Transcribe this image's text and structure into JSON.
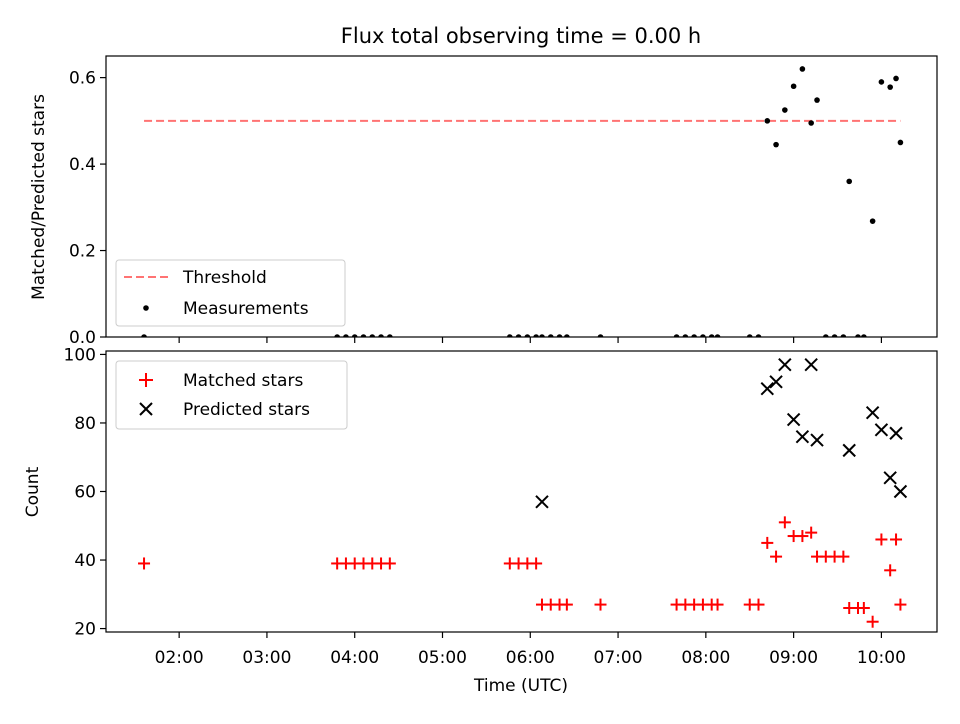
{
  "title": "Flux total observing time = 0.00 h",
  "colors": {
    "threshold": "#ff7373",
    "measurements": "#000000",
    "matched": "#ff0000",
    "predicted": "#000000",
    "axes": "#000000"
  },
  "chart_data": [
    {
      "type": "scatter",
      "panel": "top",
      "ylabel": "Matched/Predicted stars",
      "xlabel": "",
      "xlim": [
        "01:10",
        "10:38"
      ],
      "ylim": [
        0,
        0.65
      ],
      "yticks": [
        0.0,
        0.2,
        0.4,
        0.6
      ],
      "ytick_labels": [
        "0.0",
        "0.2",
        "0.4",
        "0.6"
      ],
      "legend": {
        "placement": "lower-left",
        "entries": [
          "Threshold",
          "Measurements"
        ]
      },
      "threshold": {
        "name": "Threshold",
        "value": 0.5,
        "x_range": [
          "01:36",
          "10:13"
        ]
      },
      "series": [
        {
          "name": "Measurements",
          "x": [
            "01:36",
            "03:48",
            "03:54",
            "04:00",
            "04:06",
            "04:12",
            "04:18",
            "04:24",
            "05:46",
            "05:52",
            "05:58",
            "06:04",
            "06:08",
            "06:14",
            "06:20",
            "06:25",
            "06:48",
            "07:40",
            "07:46",
            "07:52",
            "07:58",
            "08:04",
            "08:08",
            "08:30",
            "08:36",
            "08:42",
            "08:48",
            "08:54",
            "09:00",
            "09:06",
            "09:12",
            "09:16",
            "09:22",
            "09:28",
            "09:34",
            "09:38",
            "09:44",
            "09:48",
            "09:54",
            "10:00",
            "10:06",
            "10:10",
            "10:13"
          ],
          "y": [
            0,
            0,
            0,
            0,
            0,
            0,
            0,
            0,
            0,
            0,
            0,
            0,
            0,
            0,
            0,
            0,
            0,
            0,
            0,
            0,
            0,
            0,
            0,
            0,
            0,
            0.5,
            0.445,
            0.525,
            0.58,
            0.62,
            0.495,
            0.548,
            0,
            0,
            0,
            0.36,
            0,
            0,
            0.268,
            0.59,
            0.578,
            0.598,
            0.45
          ]
        }
      ]
    },
    {
      "type": "scatter",
      "panel": "bottom",
      "ylabel": "Count",
      "xlabel": "Time (UTC)",
      "xlim": [
        "01:10",
        "10:38"
      ],
      "ylim": [
        19,
        101
      ],
      "yticks": [
        20,
        40,
        60,
        80,
        100
      ],
      "ytick_labels": [
        "20",
        "40",
        "60",
        "80",
        "100"
      ],
      "xticks": [
        "02:00",
        "03:00",
        "04:00",
        "05:00",
        "06:00",
        "07:00",
        "08:00",
        "09:00",
        "10:00"
      ],
      "xtick_labels": [
        "02:00",
        "03:00",
        "04:00",
        "05:00",
        "06:00",
        "07:00",
        "08:00",
        "09:00",
        "10:00"
      ],
      "legend": {
        "placement": "upper-left",
        "entries": [
          "Matched stars",
          "Predicted stars"
        ]
      },
      "series": [
        {
          "name": "Matched stars",
          "x": [
            "01:36",
            "03:48",
            "03:54",
            "04:00",
            "04:06",
            "04:12",
            "04:18",
            "04:24",
            "05:46",
            "05:52",
            "05:58",
            "06:04",
            "06:08",
            "06:14",
            "06:20",
            "06:25",
            "06:48",
            "07:40",
            "07:46",
            "07:52",
            "07:58",
            "08:04",
            "08:08",
            "08:30",
            "08:36",
            "08:42",
            "08:48",
            "08:54",
            "09:00",
            "09:06",
            "09:12",
            "09:16",
            "09:22",
            "09:28",
            "09:34",
            "09:38",
            "09:44",
            "09:48",
            "09:54",
            "10:00",
            "10:06",
            "10:10",
            "10:13"
          ],
          "y": [
            39,
            39,
            39,
            39,
            39,
            39,
            39,
            39,
            39,
            39,
            39,
            39,
            27,
            27,
            27,
            27,
            27,
            27,
            27,
            27,
            27,
            27,
            27,
            27,
            27,
            45,
            41,
            51,
            47,
            47,
            48,
            41,
            41,
            41,
            41,
            26,
            26,
            26,
            22,
            46,
            37,
            46,
            27
          ]
        },
        {
          "name": "Predicted stars",
          "x": [
            "06:08",
            "08:42",
            "08:48",
            "08:54",
            "09:00",
            "09:06",
            "09:12",
            "09:16",
            "09:38",
            "09:54",
            "10:00",
            "10:06",
            "10:10",
            "10:13"
          ],
          "y": [
            57,
            90,
            92,
            97,
            81,
            76,
            97,
            75,
            72,
            83,
            78,
            64,
            77,
            60
          ]
        }
      ]
    }
  ]
}
